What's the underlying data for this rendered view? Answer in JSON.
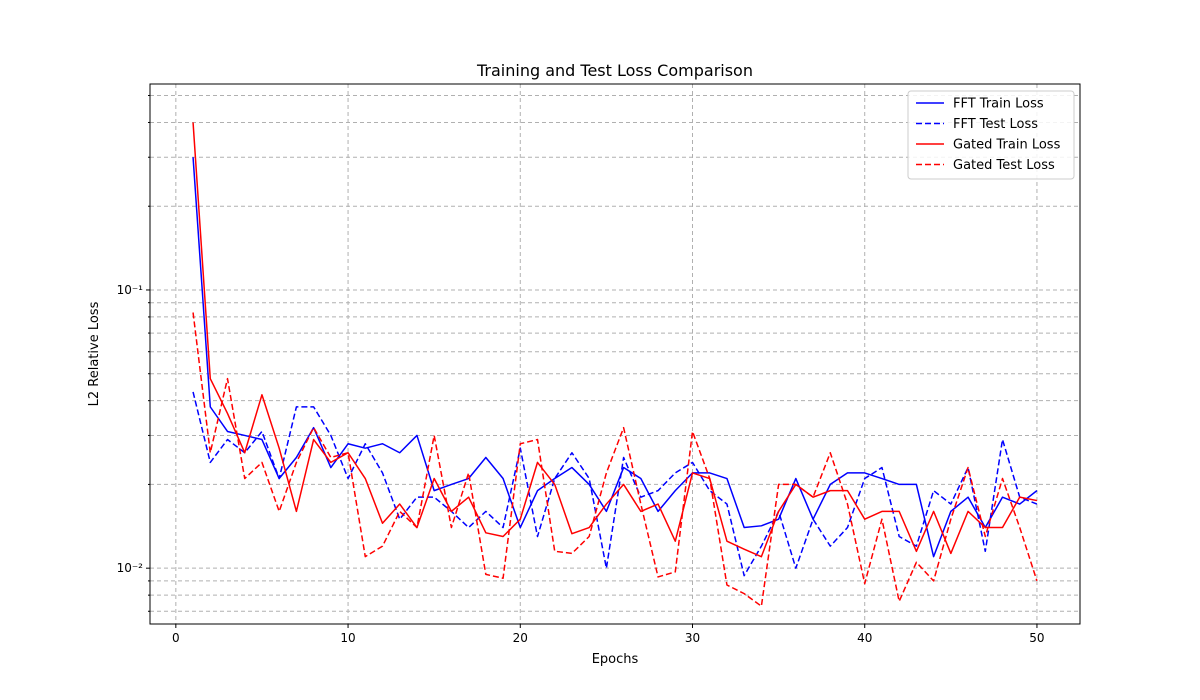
{
  "chart_data": {
    "type": "line",
    "title": "Training and Test Loss Comparison",
    "xlabel": "Epochs",
    "ylabel": "L2 Relative Loss",
    "yscale": "log",
    "xlim": [
      -1.5,
      52.5
    ],
    "ylim": [
      0.0063,
      0.55
    ],
    "xticks": [
      0,
      10,
      20,
      30,
      40,
      50
    ],
    "yticks": [
      {
        "value": 0.01,
        "label": "10⁻²"
      },
      {
        "value": 0.1,
        "label": "10⁻¹"
      }
    ],
    "grid": true,
    "legend_position": "upper right",
    "x": [
      1,
      2,
      3,
      4,
      5,
      6,
      7,
      8,
      9,
      10,
      11,
      12,
      13,
      14,
      15,
      16,
      17,
      18,
      19,
      20,
      21,
      22,
      23,
      24,
      25,
      26,
      27,
      28,
      29,
      30,
      31,
      32,
      33,
      34,
      35,
      36,
      37,
      38,
      39,
      40,
      41,
      42,
      43,
      44,
      45,
      46,
      47,
      48,
      49,
      50
    ],
    "series": [
      {
        "name": "FFT Train Loss",
        "color": "#0000ff",
        "style": "solid",
        "values": [
          0.3,
          0.038,
          0.031,
          0.03,
          0.029,
          0.021,
          0.025,
          0.032,
          0.023,
          0.028,
          0.027,
          0.028,
          0.026,
          0.03,
          0.019,
          0.02,
          0.021,
          0.025,
          0.021,
          0.014,
          0.019,
          0.021,
          0.023,
          0.02,
          0.016,
          0.023,
          0.021,
          0.016,
          0.019,
          0.022,
          0.022,
          0.021,
          0.014,
          0.0142,
          0.015,
          0.021,
          0.015,
          0.02,
          0.022,
          0.022,
          0.021,
          0.02,
          0.02,
          0.011,
          0.016,
          0.018,
          0.014,
          0.018,
          0.017,
          0.019
        ]
      },
      {
        "name": "FFT Test Loss",
        "color": "#0000ff",
        "style": "dashed",
        "values": [
          0.043,
          0.024,
          0.029,
          0.026,
          0.031,
          0.021,
          0.038,
          0.038,
          0.03,
          0.021,
          0.028,
          0.022,
          0.015,
          0.018,
          0.018,
          0.016,
          0.014,
          0.016,
          0.014,
          0.027,
          0.013,
          0.021,
          0.026,
          0.021,
          0.01,
          0.025,
          0.018,
          0.019,
          0.022,
          0.024,
          0.019,
          0.017,
          0.0094,
          0.012,
          0.016,
          0.01,
          0.015,
          0.012,
          0.014,
          0.021,
          0.023,
          0.013,
          0.012,
          0.019,
          0.017,
          0.023,
          0.0115,
          0.029,
          0.018,
          0.017
        ]
      },
      {
        "name": "Gated Train Loss",
        "color": "#ff0000",
        "style": "solid",
        "values": [
          0.4,
          0.048,
          0.036,
          0.026,
          0.042,
          0.027,
          0.016,
          0.029,
          0.024,
          0.026,
          0.021,
          0.0145,
          0.017,
          0.014,
          0.021,
          0.016,
          0.018,
          0.0134,
          0.013,
          0.015,
          0.024,
          0.02,
          0.0133,
          0.014,
          0.017,
          0.02,
          0.016,
          0.017,
          0.0125,
          0.022,
          0.021,
          0.0125,
          0.0117,
          0.011,
          0.016,
          0.02,
          0.018,
          0.019,
          0.019,
          0.015,
          0.016,
          0.016,
          0.0115,
          0.016,
          0.0113,
          0.016,
          0.014,
          0.014,
          0.018,
          0.0175
        ]
      },
      {
        "name": "Gated Test Loss",
        "color": "#ff0000",
        "style": "dashed",
        "values": [
          0.083,
          0.026,
          0.048,
          0.021,
          0.024,
          0.016,
          0.024,
          0.032,
          0.025,
          0.026,
          0.011,
          0.012,
          0.016,
          0.014,
          0.03,
          0.014,
          0.022,
          0.0095,
          0.0092,
          0.028,
          0.029,
          0.0115,
          0.0113,
          0.013,
          0.022,
          0.032,
          0.017,
          0.0093,
          0.0097,
          0.031,
          0.021,
          0.0087,
          0.0081,
          0.0073,
          0.02,
          0.02,
          0.018,
          0.026,
          0.017,
          0.0088,
          0.015,
          0.0076,
          0.0105,
          0.009,
          0.015,
          0.023,
          0.013,
          0.021,
          0.014,
          0.009
        ]
      }
    ]
  }
}
